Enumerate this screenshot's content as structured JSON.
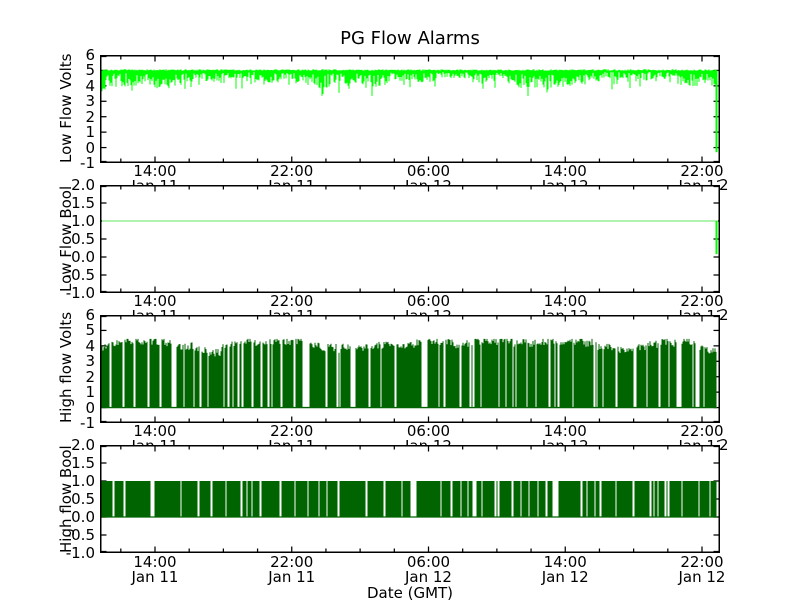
{
  "title": "PG Flow Alarms",
  "xlabel": "Date (GMT)",
  "xaxis": {
    "times": [
      "14:00",
      "22:00",
      "06:00",
      "14:00",
      "22:00"
    ],
    "dates": [
      "Jan 11",
      "Jan 11",
      "Jan 12",
      "Jan 12",
      "Jan 12"
    ],
    "overhang_digit": "2"
  },
  "colors": {
    "bright_green": "#00ff00",
    "pale_green": "#b0f2b0",
    "dark_green": "#006400",
    "axis": "#000000",
    "background": "#ffffff"
  },
  "chart_data": {
    "type": "line",
    "title": "PG Flow Alarms",
    "xlabel": "Date (GMT)",
    "x_range": [
      "Jan 11 ~10:45 GMT",
      "Jan 12 ~23:00 GMT"
    ],
    "x_major_ticks": [
      {
        "time": "14:00",
        "date": "Jan 11"
      },
      {
        "time": "22:00",
        "date": "Jan 11"
      },
      {
        "time": "06:00",
        "date": "Jan 12"
      },
      {
        "time": "14:00",
        "date": "Jan 12"
      },
      {
        "time": "22:00",
        "date": "Jan 12"
      }
    ],
    "x_major_interval_hours": 8,
    "x_minor_interval_hours": 2,
    "grid": false,
    "legend": false,
    "subplots": [
      {
        "ylabel": "Low Flow Volts",
        "ylim": [
          -1,
          6
        ],
        "yticks": [
          "6",
          "5",
          "4",
          "3",
          "2",
          "1",
          "0",
          "-1"
        ],
        "color": "#00ff00",
        "summary": "Dense noisy analog signal hugging ~5 V with continuous downward spikes mostly to 4.0-4.6 V, occasionally to ~3.5 V; the trace drops vertically to ~0 V at the very end of the record.",
        "approx_values": {
          "typical_high": 5.0,
          "typical_low": 4.2,
          "deepest_dips": 3.5,
          "final_drop_to": 0.0
        },
        "render": {
          "mode": "noise-top",
          "seed": 7,
          "baseline": 5.0,
          "dip_min": 0.18,
          "dip_max": 1.0,
          "deep_dip_prob": 0.08,
          "final_drop": [
            5.0,
            -0.3
          ]
        }
      },
      {
        "ylabel": "Low Flow Bool",
        "ylim": [
          -1,
          2
        ],
        "yticks": [
          "2.0",
          "1.5",
          "1.0",
          "0.5",
          "0.0",
          "-0.5",
          "-1.0"
        ],
        "color": "#00ff00",
        "rendered_color": "#b0f2b0",
        "summary": "Constant boolean value 1.0 across the whole span (thin pale-green line); drops to 0 at the very end.",
        "approx_values": {
          "value": 1.0,
          "final_drop_to": 0.0
        },
        "render": {
          "mode": "const",
          "value": 1.0,
          "final_drop": [
            1.0,
            0.08
          ]
        }
      },
      {
        "ylabel": "High flow Volts",
        "ylim": [
          -1,
          6
        ],
        "yticks": [
          "6",
          "5",
          "4",
          "3",
          "2",
          "1",
          "0",
          "-1"
        ],
        "color": "#006400",
        "summary": "Dense square-wave-like bursts alternating between 0 V and a wandering high level of ~3.3-4.3 V for the entire span; frequent narrow white gaps where the signal sits at 0 V.",
        "approx_values": {
          "low": 0.0,
          "high_range": [
            3.3,
            4.3
          ],
          "duty_cycle": 0.9
        },
        "render": {
          "mode": "burst",
          "seed": 33,
          "top_range": [
            3.25,
            4.3
          ],
          "top_jitter": 0.5,
          "run_max": 13,
          "gap_prob": 0.85,
          "big_gap_prob": 0.07
        }
      },
      {
        "ylabel": "High flow Bool",
        "ylim": [
          -1,
          2
        ],
        "yticks": [
          "2.0",
          "1.5",
          "1.0",
          "0.5",
          "0.0",
          "-0.5",
          "-1.0"
        ],
        "color": "#006400",
        "summary": "Dense boolean square wave toggling between 0 and 1 for the entire span with frequent narrow gaps sitting at 0.",
        "approx_values": {
          "low": 0.0,
          "high": 1.0,
          "duty_cycle": 0.9
        },
        "render": {
          "mode": "burst",
          "seed": 91,
          "top_range": [
            1,
            1
          ],
          "top_jitter": 0.0,
          "run_max": 16,
          "gap_prob": 0.8,
          "big_gap_prob": 0.06
        }
      }
    ]
  }
}
